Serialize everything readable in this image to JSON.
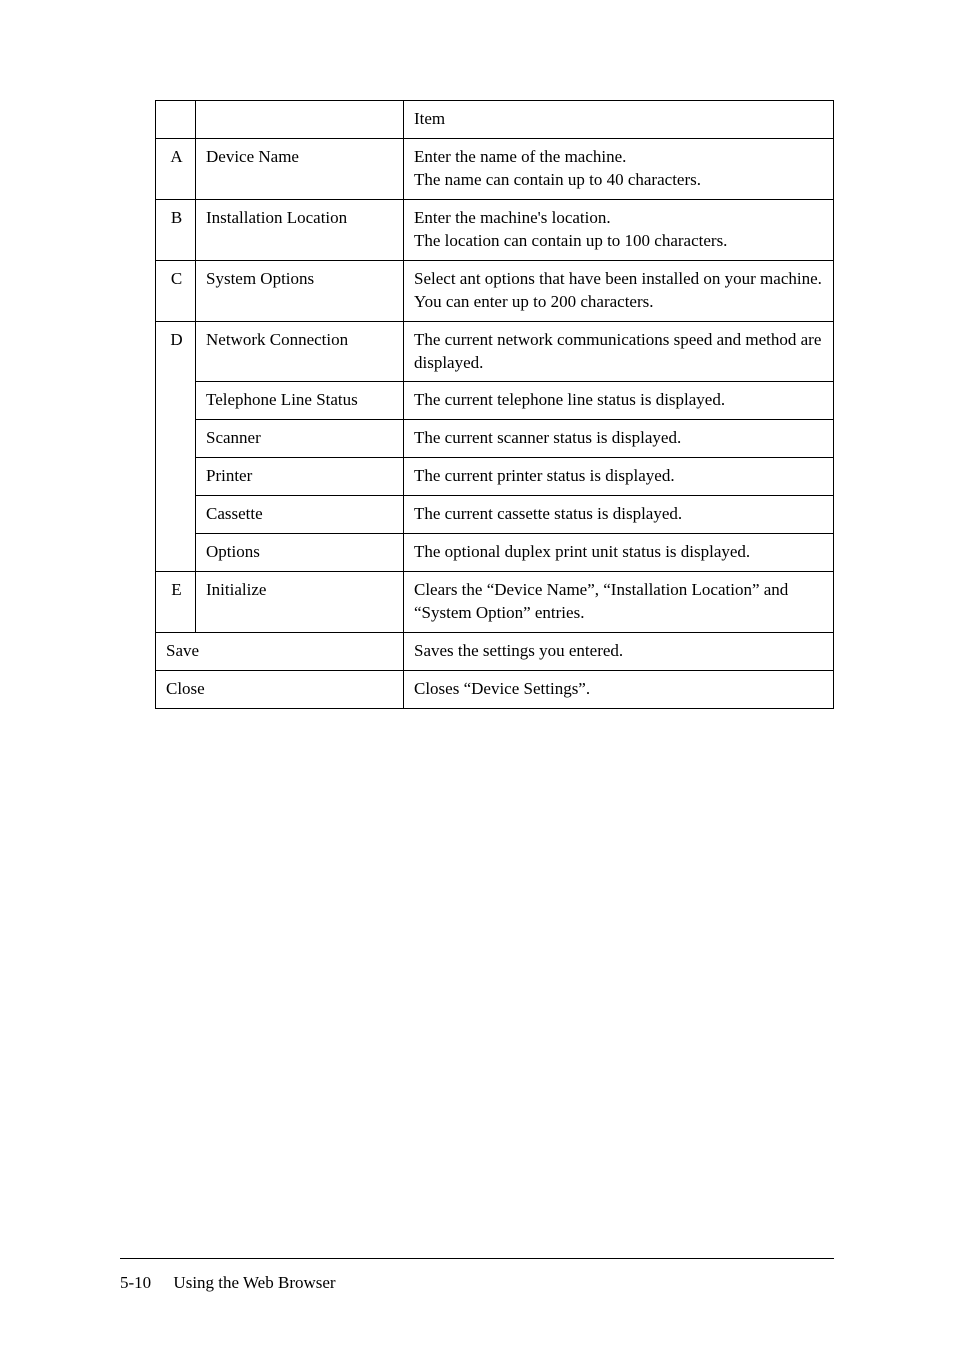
{
  "table": {
    "header": {
      "c3": "Item"
    },
    "rows": [
      {
        "letter": "A",
        "label": "Device Name",
        "item": "Enter the name of the machine.\nThe name can contain up to 40 characters."
      },
      {
        "letter": "B",
        "label": "Installation Location",
        "item": "Enter the machine's location.\nThe location can contain up to 100 characters."
      },
      {
        "letter": "C",
        "label": "System Options",
        "item": "Select ant options that have been installed on your machine.\nYou can enter up to 200 characters."
      },
      {
        "letter": "D",
        "label": "Network Connection",
        "item": "The current network communications speed and method are displayed."
      },
      {
        "letter": "",
        "label": "Telephone Line Status",
        "item": "The current telephone line status is displayed."
      },
      {
        "letter": "",
        "label": "Scanner",
        "item": "The current scanner status is displayed."
      },
      {
        "letter": "",
        "label": "Printer",
        "item": "The current printer status is displayed."
      },
      {
        "letter": "",
        "label": "Cassette",
        "item": "The current cassette status is displayed."
      },
      {
        "letter": "",
        "label": "Options",
        "item": "The optional duplex print unit status is displayed."
      },
      {
        "letter": "E",
        "label": "Initialize",
        "item": "Clears the “Device Name”, “Installation Location” and “System Option” entries."
      },
      {
        "span": true,
        "label": "Save",
        "item": "Saves the settings you entered."
      },
      {
        "span": true,
        "label": "Close",
        "item": "Closes “Device Settings”."
      }
    ]
  },
  "footer": {
    "page": "5-10",
    "title": "Using the Web Browser"
  },
  "style": {
    "background_color": "#ffffff",
    "text_color": "#000000",
    "border_color": "#000000",
    "body_fontsize": 17,
    "font_family": "Century Schoolbook"
  }
}
